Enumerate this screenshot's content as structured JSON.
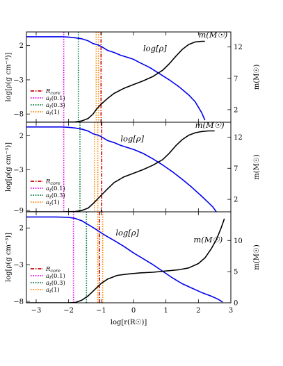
{
  "chart_data": [
    {
      "type": "line",
      "panel": "top",
      "title": "",
      "xlim": [
        -3.3,
        3.0
      ],
      "ylim_left": [
        -9.2,
        4.0
      ],
      "ylim_right": [
        0,
        14.4
      ],
      "yticks_left": [
        "2",
        "-3",
        "-8"
      ],
      "yticks_right": [
        "2",
        "7",
        "12"
      ],
      "ylabel_left": "log[ρ(g cm⁻³)]",
      "ylabel_right": "m(M☉)",
      "legend": [
        "R_core",
        "a_t(0.1)",
        "a_t(0.3)",
        "a_t(1)"
      ],
      "legend_position": "lower-left",
      "annotations": [
        {
          "text": "log[ρ]",
          "x": 0.3,
          "y": 1.2,
          "color": "#0000dd"
        },
        {
          "text": "m(M☉)",
          "x": 2.0,
          "y": 3.2,
          "color": "#000000"
        }
      ],
      "vlines": [
        {
          "name": "R_core",
          "x": -1.0,
          "color": "#cc0000",
          "dash": "dashdot"
        },
        {
          "name": "a_t(0.1)",
          "x": -2.15,
          "color": "#ee00ee",
          "dash": "dot"
        },
        {
          "name": "a_t(0.3)",
          "x": -1.7,
          "color": "#007a3d",
          "dash": "dot"
        },
        {
          "name": "a_t(1)",
          "x": -1.15,
          "color": "#ff8800",
          "dash": "dot"
        },
        {
          "name": "a_t(1)",
          "x": -1.08,
          "color": "#ff8800",
          "dash": "dot"
        }
      ],
      "series": [
        {
          "axis": "left",
          "color": "#0000ee",
          "x": [
            -3.3,
            -2.6,
            -2.2,
            -2.0,
            -1.8,
            -1.6,
            -1.4,
            -1.25,
            -1.1,
            -1.0,
            -0.9,
            -0.8,
            -0.6,
            -0.4,
            -0.2,
            0.0,
            0.2,
            0.5,
            0.8,
            1.1,
            1.4,
            1.7,
            1.9,
            2.0,
            2.1,
            2.2
          ],
          "y": [
            3.3,
            3.3,
            3.3,
            3.25,
            3.15,
            3.0,
            2.7,
            2.3,
            2.1,
            1.9,
            1.6,
            1.3,
            1.0,
            0.6,
            0.3,
            0.0,
            -0.5,
            -1.2,
            -2.1,
            -3.0,
            -4.0,
            -5.2,
            -6.2,
            -7.0,
            -7.8,
            -8.9
          ]
        },
        {
          "axis": "right",
          "color": "#000000",
          "x": [
            -3.3,
            -2.2,
            -1.8,
            -1.6,
            -1.4,
            -1.25,
            -1.15,
            -1.05,
            -0.95,
            -0.8,
            -0.6,
            -0.3,
            0.0,
            0.3,
            0.6,
            0.9,
            1.1,
            1.3,
            1.5,
            1.7,
            1.9,
            2.1,
            2.2
          ],
          "y": [
            0.0,
            0.0,
            0.05,
            0.2,
            0.6,
            1.3,
            2.0,
            2.6,
            3.1,
            3.8,
            4.6,
            5.4,
            6.0,
            6.6,
            7.3,
            8.3,
            9.3,
            10.5,
            11.6,
            12.4,
            12.8,
            12.9,
            12.9
          ]
        }
      ]
    },
    {
      "type": "line",
      "panel": "middle",
      "title": "",
      "xlim": [
        -3.3,
        3.0
      ],
      "ylim_left": [
        -9.2,
        4.0
      ],
      "ylim_right": [
        0,
        14.4
      ],
      "yticks_left": [
        "2",
        "-3",
        "-9"
      ],
      "yticks_right": [
        "2",
        "7",
        "12"
      ],
      "ylabel_left": "log[ρ(g cm⁻³)]",
      "ylabel_right": "m(M☉)",
      "legend": [
        "R_core",
        "a_t(0.1)",
        "a_t(0.3)",
        "a_t(1)"
      ],
      "legend_position": "lower-left",
      "annotations": [
        {
          "text": "log[ρ]",
          "x": -0.4,
          "y": 1.2,
          "color": "#0000dd"
        },
        {
          "text": "m(M☉)",
          "x": 1.9,
          "y": 3.2,
          "color": "#000000"
        }
      ],
      "vlines": [
        {
          "name": "R_core",
          "x": -0.98,
          "color": "#cc0000",
          "dash": "dashdot"
        },
        {
          "name": "a_t(0.1)",
          "x": -2.15,
          "color": "#ee00ee",
          "dash": "dot"
        },
        {
          "name": "a_t(0.3)",
          "x": -1.65,
          "color": "#007a3d",
          "dash": "dot"
        },
        {
          "name": "a_t(1)",
          "x": -1.2,
          "color": "#ff8800",
          "dash": "dot"
        },
        {
          "name": "a_t(1)",
          "x": -1.1,
          "color": "#ff8800",
          "dash": "dot"
        }
      ],
      "series": [
        {
          "axis": "left",
          "color": "#0000ee",
          "x": [
            -3.3,
            -2.6,
            -2.2,
            -2.0,
            -1.8,
            -1.6,
            -1.4,
            -1.25,
            -1.1,
            -1.0,
            -0.9,
            -0.8,
            -0.6,
            -0.4,
            -0.2,
            0.0,
            0.3,
            0.6,
            0.9,
            1.2,
            1.5,
            1.8,
            2.1,
            2.3,
            2.45,
            2.55
          ],
          "y": [
            3.3,
            3.3,
            3.3,
            3.25,
            3.15,
            3.0,
            2.7,
            2.3,
            2.1,
            1.9,
            1.6,
            1.3,
            1.0,
            0.6,
            0.3,
            0.0,
            -0.6,
            -1.4,
            -2.3,
            -3.3,
            -4.4,
            -5.6,
            -6.9,
            -7.8,
            -8.5,
            -9.2
          ]
        },
        {
          "axis": "right",
          "color": "#000000",
          "x": [
            -3.3,
            -2.2,
            -1.8,
            -1.6,
            -1.4,
            -1.25,
            -1.1,
            -0.95,
            -0.8,
            -0.6,
            -0.3,
            0.0,
            0.3,
            0.6,
            0.9,
            1.1,
            1.3,
            1.5,
            1.7,
            1.9,
            2.1,
            2.3,
            2.5
          ],
          "y": [
            0.0,
            0.0,
            0.05,
            0.2,
            0.6,
            1.3,
            2.1,
            2.9,
            3.7,
            4.7,
            5.6,
            6.2,
            6.8,
            7.5,
            8.4,
            9.4,
            10.6,
            11.6,
            12.3,
            12.7,
            12.9,
            13.0,
            13.0
          ]
        }
      ]
    },
    {
      "type": "line",
      "panel": "bottom",
      "title": "",
      "xlim": [
        -3.3,
        3.0
      ],
      "xticks": [
        "-3",
        "-2",
        "-1",
        "0",
        "1",
        "2",
        "3"
      ],
      "xlabel": "log[r(R☉)]",
      "ylim_left": [
        -8.2,
        4.2
      ],
      "ylim_right": [
        0,
        14.6
      ],
      "yticks_left": [
        "2",
        "-3",
        "-8"
      ],
      "yticks_right": [
        "0",
        "5",
        "10"
      ],
      "ylabel_left": "log[ρ(g cm⁻³)]",
      "ylabel_right": "m(M☉)",
      "legend": [
        "R_core",
        "a_t(0.1)",
        "a_t(0.3)",
        "a_t(1)"
      ],
      "legend_position": "lower-left",
      "annotations": [
        {
          "text": "log[ρ]",
          "x": -0.55,
          "y": 1.0,
          "color": "#0000dd"
        },
        {
          "text": "m(M☉)",
          "x": 1.85,
          "y": 4.2,
          "color": "#000000"
        }
      ],
      "vlines": [
        {
          "name": "R_core",
          "x": -1.05,
          "color": "#cc0000",
          "dash": "dashdot"
        },
        {
          "name": "a_t(0.1)",
          "x": -1.85,
          "color": "#ee00ee",
          "dash": "dot"
        },
        {
          "name": "a_t(0.3)",
          "x": -1.45,
          "color": "#007a3d",
          "dash": "dot"
        },
        {
          "name": "a_t(1)",
          "x": -1.1,
          "color": "#ff8800",
          "dash": "dot"
        },
        {
          "name": "a_t(1)",
          "x": -0.95,
          "color": "#ff8800",
          "dash": "dot"
        }
      ],
      "series": [
        {
          "axis": "left",
          "color": "#0000ee",
          "x": [
            -3.3,
            -2.4,
            -2.0,
            -1.8,
            -1.6,
            -1.45,
            -1.3,
            -1.15,
            -1.05,
            -0.95,
            -0.8,
            -0.6,
            -0.3,
            0.0,
            0.3,
            0.6,
            0.9,
            1.2,
            1.5,
            1.8,
            2.1,
            2.4,
            2.6,
            2.75
          ],
          "y": [
            3.5,
            3.5,
            3.45,
            3.3,
            3.0,
            2.6,
            2.2,
            1.8,
            1.5,
            1.2,
            0.8,
            0.3,
            -0.5,
            -1.4,
            -2.2,
            -3.0,
            -3.9,
            -4.8,
            -5.6,
            -6.2,
            -6.8,
            -7.3,
            -7.7,
            -8.1
          ]
        },
        {
          "axis": "right",
          "color": "#000000",
          "x": [
            -3.3,
            -2.0,
            -1.8,
            -1.6,
            -1.4,
            -1.2,
            -1.0,
            -0.8,
            -0.5,
            -0.2,
            0.2,
            0.6,
            1.0,
            1.4,
            1.7,
            2.0,
            2.2,
            2.4,
            2.55,
            2.7,
            2.8
          ],
          "y": [
            0.0,
            0.0,
            0.05,
            0.4,
            1.1,
            2.1,
            3.1,
            3.8,
            4.4,
            4.6,
            4.8,
            4.9,
            5.1,
            5.3,
            5.6,
            6.3,
            7.2,
            8.7,
            10.1,
            12.0,
            13.5
          ]
        }
      ]
    }
  ]
}
